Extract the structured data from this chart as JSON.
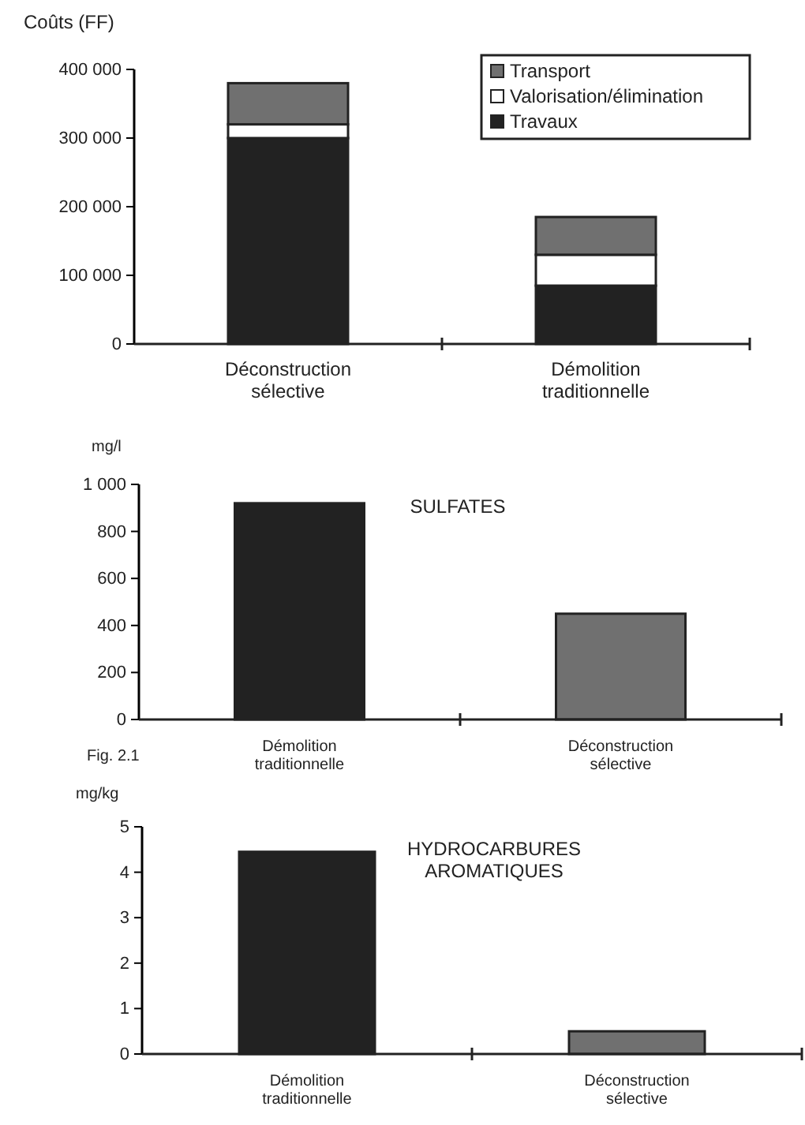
{
  "chart_data": [
    {
      "type": "bar",
      "ylabel": "Coûts (FF)",
      "categories": [
        "Déconstruction sélective",
        "Démolition traditionnelle"
      ],
      "stacked": true,
      "legend": "top right",
      "series": [
        {
          "name": "Travaux",
          "color": "#222222",
          "values": [
            300000,
            85000
          ]
        },
        {
          "name": "Valorisation/élimination",
          "color": "#ffffff",
          "values": [
            20000,
            45000
          ]
        },
        {
          "name": "Transport",
          "color": "#707070",
          "values": [
            60000,
            55000
          ]
        }
      ],
      "ylim": [
        0,
        400000
      ],
      "yticks": [
        0,
        {
          "value": 100000,
          "label": "100 000"
        },
        {
          "value": 200000,
          "label": "200 000"
        },
        {
          "value": 300000,
          "label": "300 000"
        },
        {
          "value": 400000,
          "label": "400 000"
        }
      ]
    },
    {
      "type": "bar",
      "title": "SULFATES",
      "ylabel": "mg/l",
      "categories": [
        "Démolition traditionnelle",
        "Déconstruction sélective"
      ],
      "values": [
        920,
        450
      ],
      "colors": [
        "#222222",
        "#707070"
      ],
      "ylim": [
        0,
        1000
      ],
      "yticks": [
        0,
        200,
        400,
        600,
        800,
        {
          "value": 1000,
          "label": "1 000"
        }
      ],
      "annotations": [
        "Fig. 2.1"
      ]
    },
    {
      "type": "bar",
      "title": "HYDROCARBURES AROMATIQUES",
      "ylabel": "mg/kg",
      "categories": [
        "Démolition traditionnelle",
        "Déconstruction sélective"
      ],
      "values": [
        4.45,
        0.5
      ],
      "colors": [
        "#222222",
        "#707070"
      ],
      "ylim": [
        0,
        5
      ],
      "yticks": [
        0,
        1,
        2,
        3,
        4,
        5
      ]
    }
  ]
}
